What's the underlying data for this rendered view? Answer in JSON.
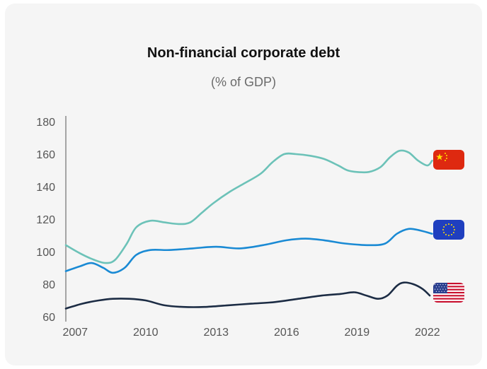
{
  "chart_data": {
    "type": "line",
    "title": "Non-financial corporate debt",
    "subtitle": "(% of GDP)",
    "xlabel": "",
    "ylabel": "",
    "xlim": [
      2006.6,
      2023.0
    ],
    "ylim": [
      60,
      180
    ],
    "yticks": [
      60,
      80,
      100,
      120,
      140,
      160,
      180
    ],
    "xticks": [
      2007,
      2010,
      2013,
      2016,
      2019,
      2022
    ],
    "grid": false,
    "legend": "flag icons at right end of each series",
    "series": [
      {
        "flag": "china-flag-icon",
        "color": "#6cc2b8",
        "x": [
          2006.6,
          2007.2,
          2007.8,
          2008.3,
          2008.7,
          2009.2,
          2009.6,
          2010.2,
          2010.8,
          2011.4,
          2011.9,
          2012.4,
          2012.9,
          2013.6,
          2014.2,
          2014.9,
          2015.4,
          2015.9,
          2016.4,
          2017.0,
          2017.6,
          2018.2,
          2018.6,
          2019.0,
          2019.5,
          2020.0,
          2020.4,
          2020.8,
          2021.2,
          2021.6,
          2022.0,
          2022.2
        ],
        "values": [
          104,
          99,
          95,
          93,
          95,
          105,
          115,
          119,
          118,
          117,
          118,
          124,
          130,
          137,
          142,
          148,
          155,
          160,
          160,
          159,
          157,
          153,
          150,
          149,
          149,
          152,
          158,
          162,
          161,
          156,
          153,
          156
        ]
      },
      {
        "flag": "eu-flag-icon",
        "color": "#1a8ad4",
        "x": [
          2006.6,
          2007.2,
          2007.7,
          2008.2,
          2008.6,
          2009.1,
          2009.6,
          2010.2,
          2011.0,
          2012.0,
          2013.0,
          2014.0,
          2015.0,
          2016.0,
          2016.8,
          2017.6,
          2018.5,
          2019.5,
          2020.2,
          2020.7,
          2021.2,
          2021.7,
          2022.2
        ],
        "values": [
          88,
          91,
          93,
          90,
          87,
          90,
          98,
          101,
          101,
          102,
          103,
          102,
          104,
          107,
          108,
          107,
          105,
          104,
          105,
          111,
          114,
          113,
          111
        ]
      },
      {
        "flag": "usa-flag-icon",
        "color": "#1c2c44",
        "x": [
          2006.6,
          2007.3,
          2008.0,
          2008.6,
          2009.3,
          2010.0,
          2010.8,
          2011.6,
          2012.5,
          2013.5,
          2014.5,
          2015.5,
          2016.5,
          2017.5,
          2018.3,
          2018.9,
          2019.4,
          2019.9,
          2020.3,
          2020.7,
          2021.0,
          2021.4,
          2021.8,
          2022.1
        ],
        "values": [
          65,
          68,
          70,
          71,
          71,
          70,
          67,
          66,
          66,
          67,
          68,
          69,
          71,
          73,
          74,
          75,
          73,
          71,
          73,
          79,
          81,
          80,
          77,
          73
        ]
      }
    ]
  }
}
